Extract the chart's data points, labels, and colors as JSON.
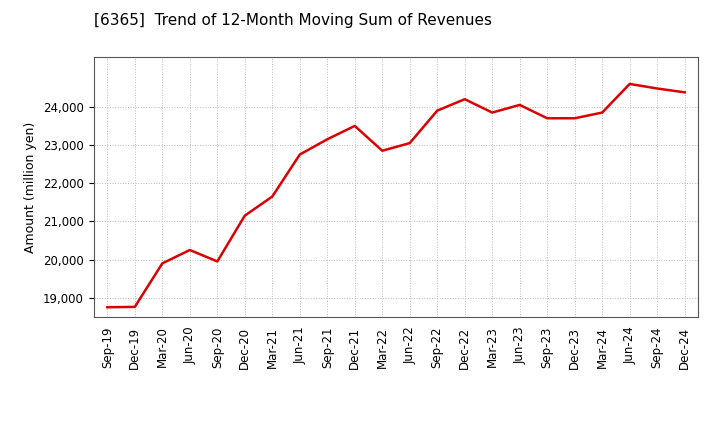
{
  "title": "[6365]  Trend of 12-Month Moving Sum of Revenues",
  "ylabel": "Amount (million yen)",
  "line_color": "#dd0000",
  "line_width": 1.8,
  "background_color": "#ffffff",
  "grid_color": "#bbbbbb",
  "grid_linestyle": ":",
  "grid_linewidth": 0.7,
  "x_labels": [
    "Sep-19",
    "Dec-19",
    "Mar-20",
    "Jun-20",
    "Sep-20",
    "Dec-20",
    "Mar-21",
    "Jun-21",
    "Sep-21",
    "Dec-21",
    "Mar-22",
    "Jun-22",
    "Sep-22",
    "Dec-22",
    "Mar-23",
    "Jun-23",
    "Sep-23",
    "Dec-23",
    "Mar-24",
    "Jun-24",
    "Sep-24",
    "Dec-24"
  ],
  "values": [
    18750,
    18760,
    19900,
    20250,
    19950,
    21150,
    21650,
    22750,
    23150,
    23500,
    22850,
    23050,
    23900,
    24200,
    23850,
    24050,
    23700,
    23700,
    23850,
    24600,
    24480,
    24380
  ],
  "ylim": [
    18500,
    25300
  ],
  "yticks": [
    19000,
    20000,
    21000,
    22000,
    23000,
    24000
  ],
  "title_fontsize": 11,
  "tick_fontsize": 8.5,
  "ylabel_fontsize": 9,
  "title_fontweight": "normal",
  "spine_color": "#555555",
  "spine_linewidth": 0.8
}
